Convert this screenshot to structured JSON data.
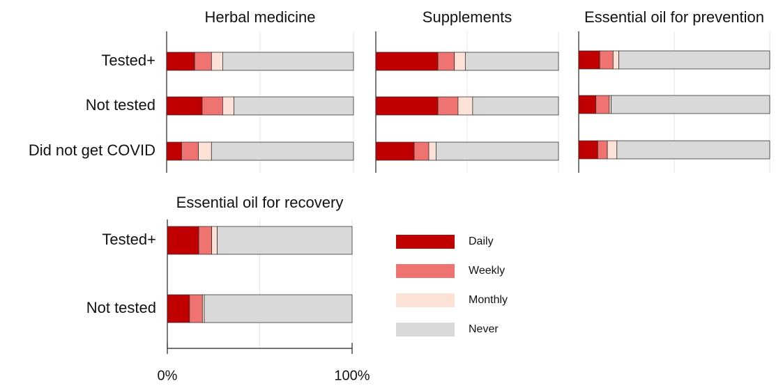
{
  "chart_data": [
    {
      "type": "bar",
      "orientation": "horizontal",
      "stacked": true,
      "title": "Herbal medicine",
      "categories": [
        "Tested+",
        "Not tested",
        "Did not get COVID"
      ],
      "series": [
        {
          "name": "Daily",
          "color": "#c00000",
          "values": [
            15,
            19,
            8
          ]
        },
        {
          "name": "Weekly",
          "color": "#ef7370",
          "values": [
            9,
            11,
            9
          ]
        },
        {
          "name": "Monthly",
          "color": "#fce1d7",
          "values": [
            6,
            6,
            7
          ]
        },
        {
          "name": "Never",
          "color": "#d9d9d9",
          "values": [
            70,
            64,
            76
          ]
        }
      ],
      "xlim": [
        0,
        100
      ],
      "xgrid": [
        0,
        50,
        100
      ]
    },
    {
      "type": "bar",
      "orientation": "horizontal",
      "stacked": true,
      "title": "Supplements",
      "series": [
        {
          "name": "Daily",
          "color": "#c00000",
          "values": [
            34,
            34,
            21
          ]
        },
        {
          "name": "Weekly",
          "color": "#ef7370",
          "values": [
            9,
            11,
            8
          ]
        },
        {
          "name": "Monthly",
          "color": "#fce1d7",
          "values": [
            6,
            8,
            4
          ]
        },
        {
          "name": "Never",
          "color": "#d9d9d9",
          "values": [
            51,
            47,
            67
          ]
        }
      ],
      "xlim": [
        0,
        100
      ],
      "xgrid": [
        0,
        50,
        100
      ]
    },
    {
      "type": "bar",
      "orientation": "horizontal",
      "stacked": true,
      "title": "Essential oil for prevention",
      "series": [
        {
          "name": "Daily",
          "color": "#c00000",
          "values": [
            11,
            9,
            10
          ]
        },
        {
          "name": "Weekly",
          "color": "#ef7370",
          "values": [
            7,
            7,
            5
          ]
        },
        {
          "name": "Monthly",
          "color": "#fce1d7",
          "values": [
            3,
            1,
            5
          ]
        },
        {
          "name": "Never",
          "color": "#d9d9d9",
          "values": [
            79,
            83,
            80
          ]
        }
      ],
      "xlim": [
        0,
        100
      ],
      "xgrid": [
        0,
        50,
        100
      ]
    },
    {
      "type": "bar",
      "orientation": "horizontal",
      "stacked": true,
      "title": "Essential oil for recovery",
      "categories": [
        "Tested+",
        "Not tested"
      ],
      "series": [
        {
          "name": "Daily",
          "color": "#c00000",
          "values": [
            17,
            12
          ]
        },
        {
          "name": "Weekly",
          "color": "#ef7370",
          "values": [
            7,
            7
          ]
        },
        {
          "name": "Monthly",
          "color": "#fce1d7",
          "values": [
            3,
            1
          ]
        },
        {
          "name": "Never",
          "color": "#d9d9d9",
          "values": [
            73,
            80
          ]
        }
      ],
      "xlim": [
        0,
        100
      ],
      "xgrid": [
        0,
        50,
        100
      ],
      "xticks": [
        {
          "value": 0,
          "label": "0%"
        },
        {
          "value": 100,
          "label": "100%"
        }
      ],
      "legend": "right"
    }
  ]
}
